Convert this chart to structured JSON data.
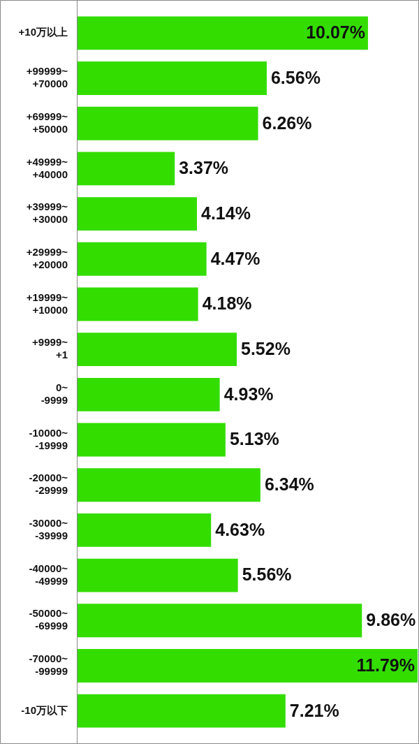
{
  "chart_data": {
    "type": "bar",
    "orientation": "horizontal",
    "categories": [
      "+10万以上",
      "+99999~\n+70000",
      "+69999~\n+50000",
      "+49999~\n+40000",
      "+39999~\n+30000",
      "+29999~\n+20000",
      "+19999~\n+10000",
      "+9999~\n+1",
      "0~\n-9999",
      "-10000~\n-19999",
      "-20000~\n-29999",
      "-30000~\n-39999",
      "-40000~\n-49999",
      "-50000~\n-69999",
      "-70000~\n-99999",
      "-10万以下"
    ],
    "values": [
      10.07,
      6.56,
      6.26,
      3.37,
      4.14,
      4.47,
      4.18,
      5.52,
      4.93,
      5.13,
      6.34,
      4.63,
      5.56,
      9.86,
      11.79,
      7.21
    ],
    "value_labels": [
      "10.07%",
      "6.56%",
      "6.26%",
      "3.37%",
      "4.14%",
      "4.47%",
      "4.18%",
      "5.52%",
      "4.93%",
      "5.13%",
      "6.34%",
      "4.63%",
      "5.56%",
      "9.86%",
      "11.79%",
      "7.21%"
    ],
    "color": "#33dd00",
    "legend": false
  }
}
